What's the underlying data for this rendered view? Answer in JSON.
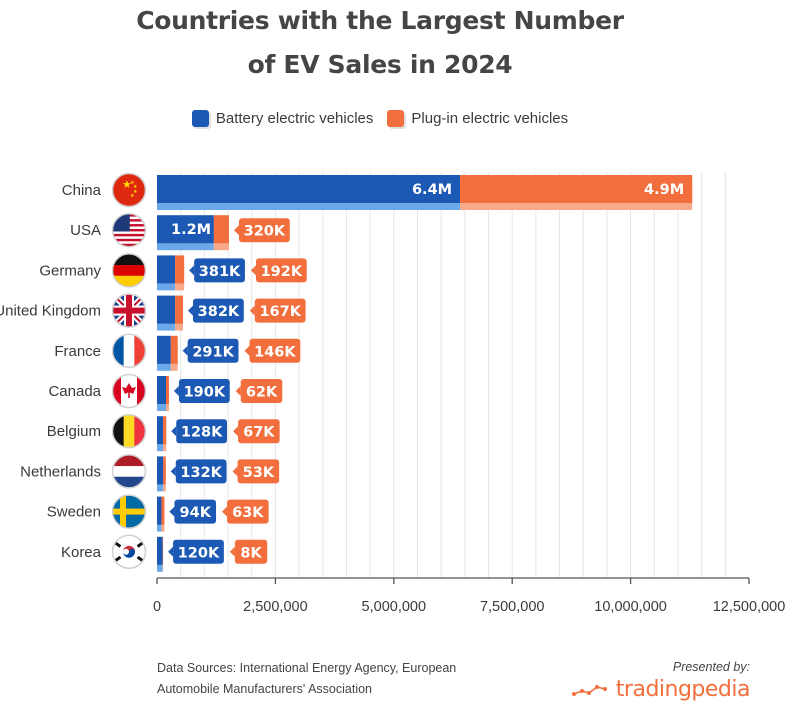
{
  "title_line1": "Countries with the Largest Number",
  "title_line2": "of EV Sales in 2024",
  "colors": {
    "bev": "#1b59b4",
    "phev": "#f26f3d",
    "bev_light": "#6aa8ea",
    "phev_light": "#f8a98a",
    "grid": "#e6e6e6",
    "axis": "#555555"
  },
  "chart_data": {
    "type": "bar",
    "orientation": "horizontal",
    "stacked": true,
    "title": "Countries with the Largest Number of EV Sales in 2024",
    "categories": [
      "China",
      "USA",
      "Germany",
      "United Kingdom",
      "France",
      "Canada",
      "Belgium",
      "Netherlands",
      "Sweden",
      "Korea"
    ],
    "series": [
      {
        "name": "Battery electric vehicles",
        "color": "#1b59b4",
        "values": [
          6400000,
          1200000,
          381000,
          382000,
          291000,
          190000,
          128000,
          132000,
          94000,
          120000
        ],
        "labels": [
          "6.4M",
          "1.2M",
          "381K",
          "382K",
          "291K",
          "190K",
          "128K",
          "132K",
          "94K",
          "120K"
        ]
      },
      {
        "name": "Plug-in electric vehicles",
        "color": "#f26f3d",
        "values": [
          4900000,
          320000,
          192000,
          167000,
          146000,
          62000,
          67000,
          53000,
          63000,
          8000
        ],
        "labels": [
          "4.9M",
          "320K",
          "192K",
          "167K",
          "146K",
          "62K",
          "67K",
          "53K",
          "63K",
          "8K"
        ]
      }
    ],
    "xlim": [
      0,
      12500000
    ],
    "xticks": [
      0,
      2500000,
      5000000,
      7500000,
      10000000,
      12500000
    ],
    "xtick_labels": [
      "0",
      "2,500,000",
      "5,000,000",
      "7,500,000",
      "10,000,000",
      "12,500,000"
    ],
    "legend": "top-center",
    "grid": true
  },
  "flags": [
    "china-flag-icon",
    "usa-flag-icon",
    "germany-flag-icon",
    "uk-flag-icon",
    "france-flag-icon",
    "canada-flag-icon",
    "belgium-flag-icon",
    "netherlands-flag-icon",
    "sweden-flag-icon",
    "korea-flag-icon"
  ],
  "footer": {
    "sources_line1": "Data Sources: International Energy Agency, European",
    "sources_line2": "Automobile Manufacturers' Association",
    "presented_by": "Presented by:",
    "brand": "tradingpedia",
    "brand_icon": "line-chart-icon"
  }
}
